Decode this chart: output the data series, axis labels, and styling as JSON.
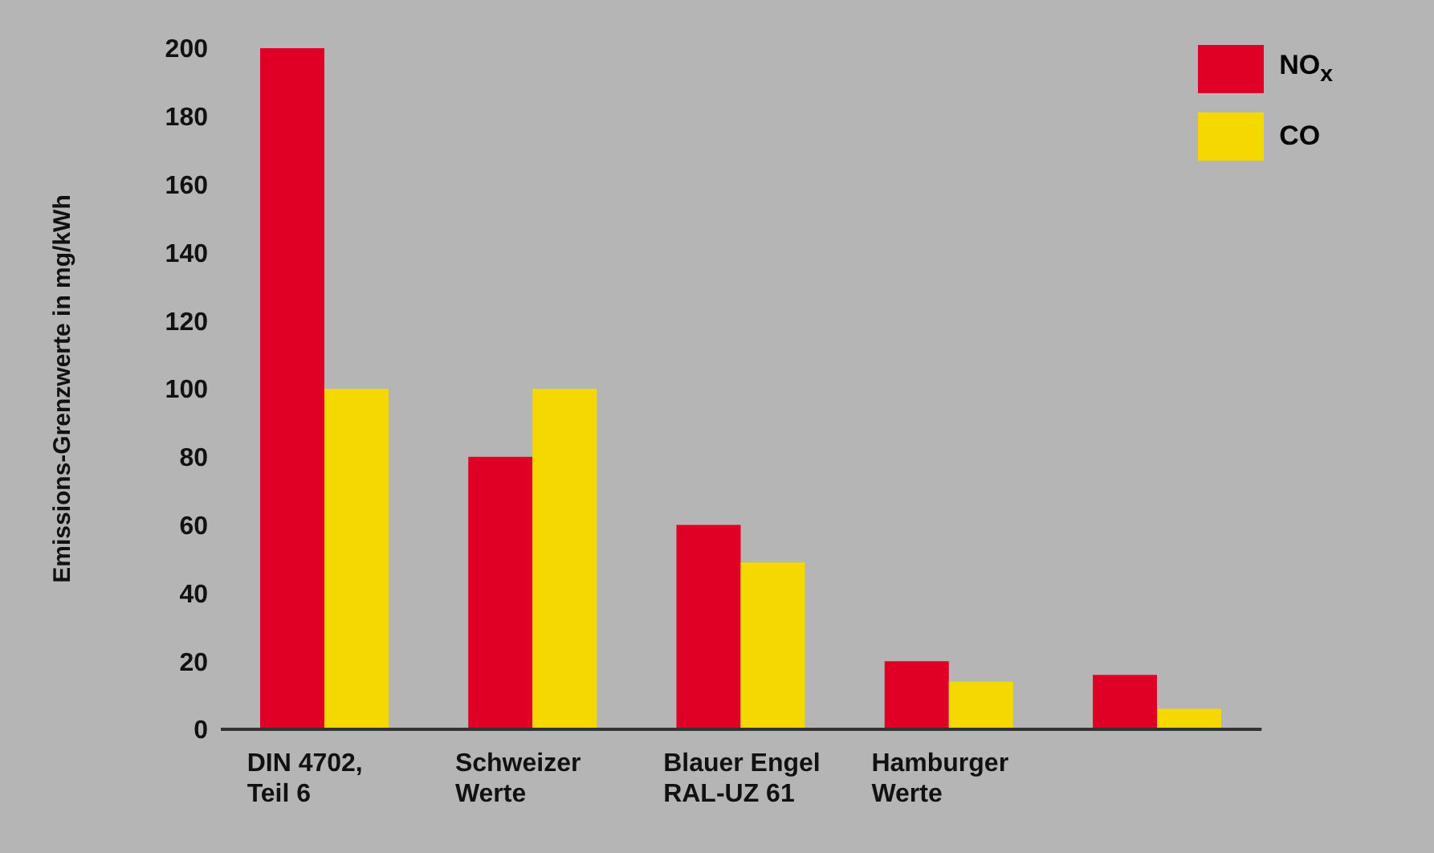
{
  "chart_data": {
    "type": "bar",
    "ylabel": "Emissions-Grenzwerte in mg/kWh",
    "categories": [
      "DIN 4702,\nTeil 6",
      "Schweizer\nWerte",
      "Blauer Engel\nRAL-UZ 61",
      "Hamburger\nWerte",
      null
    ],
    "series": [
      {
        "name": "NO$_{x}$",
        "color": "#e00025",
        "values": [
          200,
          80,
          60,
          20,
          16
        ]
      },
      {
        "name": "CO",
        "color": "#f5d800",
        "values": [
          100,
          100,
          49,
          14,
          6
        ]
      }
    ],
    "ylim": [
      0,
      200
    ],
    "yticks": [
      0,
      20,
      40,
      60,
      80,
      100,
      120,
      140,
      160,
      180,
      200
    ],
    "grid": false,
    "legend": "top right"
  }
}
